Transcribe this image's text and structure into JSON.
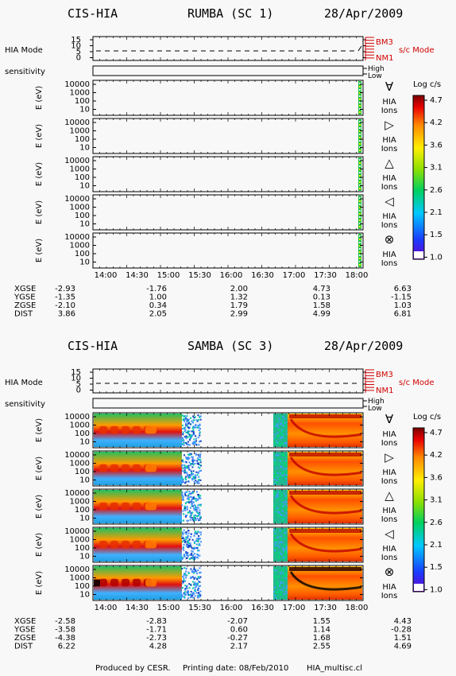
{
  "footer": {
    "produced": "Produced by CESR.",
    "printing": "Printing date: 08/Feb/2010",
    "file": "HIA_multisc.cl"
  },
  "colorbar": {
    "title": "Log c/s",
    "ticks": [
      "4.7",
      "4.2",
      "3.6",
      "3.1",
      "2.6",
      "2.1",
      "1.5",
      "1.0"
    ]
  },
  "labels": {
    "hia_mode": "HIA Mode",
    "sensitivity": "sensitivity",
    "mode_ticks": [
      "15",
      "10",
      "5",
      "0"
    ],
    "bm3": "BM3",
    "nm1": "NM1",
    "sc_mode": "s/c Mode",
    "high": "High",
    "low": "Low",
    "ylabel": "E (eV)",
    "ion_a": "HIA",
    "ion_b": "Ions",
    "energy_ticks": [
      "10000",
      "1000",
      "100",
      "10"
    ]
  },
  "chart_data": [
    {
      "type": "heatmap",
      "instrument": "CIS-HIA",
      "spacecraft": "RUMBA (SC 1)",
      "date": "28/Apr/2009",
      "x_ticks": [
        "14:00",
        "14:30",
        "15:00",
        "15:30",
        "16:00",
        "16:30",
        "17:00",
        "17:30",
        "18:00"
      ],
      "ylabel": "E (eV)",
      "y_ticks": [
        10000,
        1000,
        100,
        10
      ],
      "colorbar": {
        "label": "Log c/s",
        "range": [
          1.0,
          4.7
        ]
      },
      "directions": [
        "sunward",
        "duskward",
        "tailward",
        "dawnward",
        "all"
      ],
      "data_coverage": "only after ~18:00",
      "ephemeris": {
        "XGSE": [
          "-2.93",
          "-1.76",
          "2.00",
          "4.73",
          "6.63"
        ],
        "YGSE": [
          "-1.35",
          "1.00",
          "1.32",
          "0.13",
          "-1.15"
        ],
        "ZGSE": [
          "-2.10",
          "0.34",
          "1.79",
          "1.58",
          "1.03"
        ],
        "DIST": [
          "3.86",
          "2.05",
          "2.99",
          "4.99",
          "6.81"
        ]
      }
    },
    {
      "type": "heatmap",
      "instrument": "CIS-HIA",
      "spacecraft": "SAMBA (SC 3)",
      "date": "28/Apr/2009",
      "x_ticks": [
        "14:00",
        "14:30",
        "15:00",
        "15:30",
        "16:00",
        "16:30",
        "17:00",
        "17:30",
        "18:00"
      ],
      "ylabel": "E (eV)",
      "y_ticks": [
        10000,
        1000,
        100,
        10
      ],
      "colorbar": {
        "label": "Log c/s",
        "range": [
          1.0,
          4.7
        ]
      },
      "directions": [
        "sunward",
        "duskward",
        "tailward",
        "dawnward",
        "all"
      ],
      "data_gap": [
        "15:30",
        "16:50"
      ],
      "ephemeris": {
        "XGSE": [
          "-2.58",
          "-2.83",
          "-2.07",
          "1.55",
          "4.43"
        ],
        "YGSE": [
          "-3.58",
          "-1.71",
          "0.60",
          "1.14",
          "-0.28"
        ],
        "ZGSE": [
          "-4.38",
          "-2.73",
          "-0.27",
          "1.68",
          "1.51"
        ],
        "DIST": [
          "6.22",
          "4.28",
          "2.17",
          "2.55",
          "4.69"
        ]
      }
    }
  ]
}
